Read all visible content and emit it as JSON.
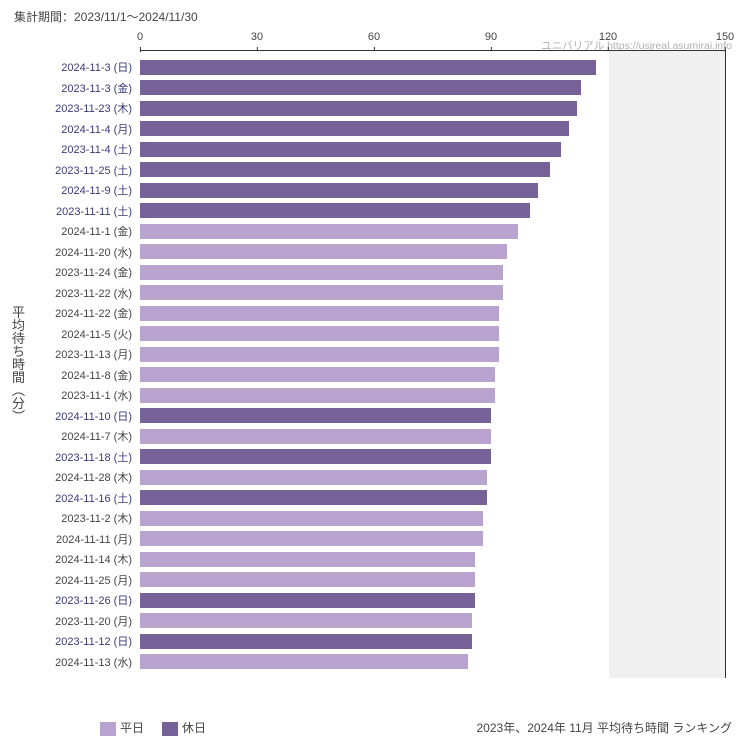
{
  "header": {
    "period_label": "集計期間：2023/11/1～2024/11/30"
  },
  "attribution": {
    "text": "ユニバリアル  https://usjreal.asumirai.info"
  },
  "chart": {
    "type": "bar-horizontal",
    "xmin": 0,
    "xmax": 150,
    "xticks": [
      0,
      30,
      60,
      90,
      120,
      150
    ],
    "shaded_from": 120,
    "shaded_to": 150,
    "yaxis_title": "平均待ち時間（分）",
    "colors": {
      "weekday": "#b9a3cf",
      "holiday": "#766299",
      "holiday_label": "#3a3a7a",
      "weekday_label": "#444444",
      "background": "#ffffff",
      "shade": "#f0f0f0"
    },
    "rows": [
      {
        "label": "2024-11-3 (日)",
        "value": 117,
        "type": "holiday"
      },
      {
        "label": "2023-11-3 (金)",
        "value": 113,
        "type": "holiday"
      },
      {
        "label": "2023-11-23 (木)",
        "value": 112,
        "type": "holiday"
      },
      {
        "label": "2024-11-4 (月)",
        "value": 110,
        "type": "holiday"
      },
      {
        "label": "2023-11-4 (土)",
        "value": 108,
        "type": "holiday"
      },
      {
        "label": "2023-11-25 (土)",
        "value": 105,
        "type": "holiday"
      },
      {
        "label": "2024-11-9 (土)",
        "value": 102,
        "type": "holiday"
      },
      {
        "label": "2023-11-11 (土)",
        "value": 100,
        "type": "holiday"
      },
      {
        "label": "2024-11-1 (金)",
        "value": 97,
        "type": "weekday"
      },
      {
        "label": "2024-11-20 (水)",
        "value": 94,
        "type": "weekday"
      },
      {
        "label": "2023-11-24 (金)",
        "value": 93,
        "type": "weekday"
      },
      {
        "label": "2023-11-22 (水)",
        "value": 93,
        "type": "weekday"
      },
      {
        "label": "2024-11-22 (金)",
        "value": 92,
        "type": "weekday"
      },
      {
        "label": "2024-11-5 (火)",
        "value": 92,
        "type": "weekday"
      },
      {
        "label": "2023-11-13 (月)",
        "value": 92,
        "type": "weekday"
      },
      {
        "label": "2024-11-8 (金)",
        "value": 91,
        "type": "weekday"
      },
      {
        "label": "2023-11-1 (水)",
        "value": 91,
        "type": "weekday"
      },
      {
        "label": "2024-11-10 (日)",
        "value": 90,
        "type": "holiday"
      },
      {
        "label": "2024-11-7 (木)",
        "value": 90,
        "type": "weekday"
      },
      {
        "label": "2023-11-18 (土)",
        "value": 90,
        "type": "holiday"
      },
      {
        "label": "2024-11-28 (木)",
        "value": 89,
        "type": "weekday"
      },
      {
        "label": "2024-11-16 (土)",
        "value": 89,
        "type": "holiday"
      },
      {
        "label": "2023-11-2 (木)",
        "value": 88,
        "type": "weekday"
      },
      {
        "label": "2024-11-11 (月)",
        "value": 88,
        "type": "weekday"
      },
      {
        "label": "2024-11-14 (木)",
        "value": 86,
        "type": "weekday"
      },
      {
        "label": "2024-11-25 (月)",
        "value": 86,
        "type": "weekday"
      },
      {
        "label": "2023-11-26 (日)",
        "value": 86,
        "type": "holiday"
      },
      {
        "label": "2023-11-20 (月)",
        "value": 85,
        "type": "weekday"
      },
      {
        "label": "2023-11-12 (日)",
        "value": 85,
        "type": "holiday"
      },
      {
        "label": "2024-11-13 (水)",
        "value": 84,
        "type": "weekday"
      }
    ]
  },
  "legend": {
    "weekday_label": "平日",
    "holiday_label": "休日"
  },
  "footer": {
    "title": "2023年、2024年 11月 平均待ち時間 ランキング"
  }
}
